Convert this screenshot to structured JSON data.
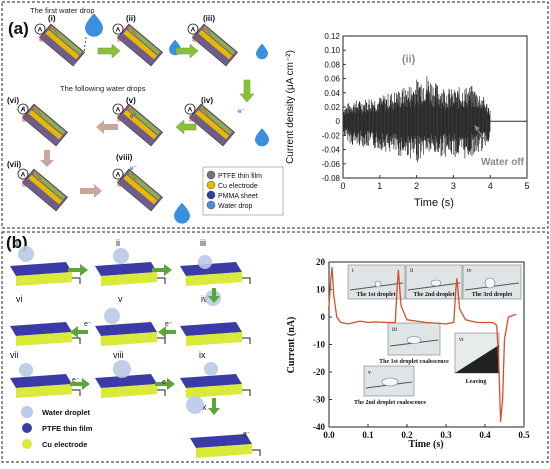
{
  "panels": {
    "a": {
      "label": "(a)",
      "top_caption": "The first water drop",
      "mid_caption": "The following water drops",
      "steps": [
        "(i)",
        "(ii)",
        "(iii)",
        "(iv)",
        "(v)",
        "(vi)",
        "(vii)",
        "(viii)"
      ],
      "ammeter": "A",
      "electron": "e⁻",
      "legend": [
        {
          "label": "PTFE thin film",
          "color": "#7a6e8a"
        },
        {
          "label": "Cu electrode",
          "color": "#e8b900"
        },
        {
          "label": "PMMA sheet",
          "color": "#2f3f9c"
        },
        {
          "label": "Water drop",
          "color": "#4a8fd6"
        }
      ]
    },
    "b": {
      "label": "(b)",
      "steps": [
        "i",
        "ii",
        "iii",
        "iv",
        "v",
        "vi",
        "vii",
        "viii",
        "ix",
        "x"
      ],
      "electron": "e⁻",
      "legend": [
        {
          "label": "Water droplet",
          "color": "#b9c9e6"
        },
        {
          "label": "PTFE thin film",
          "color": "#3b3ba8"
        },
        {
          "label": "Cu electrode",
          "color": "#d9ea3a"
        }
      ],
      "inset_labels": [
        {
          "roman": "i",
          "text": "The 1st droplet"
        },
        {
          "roman": "ii",
          "text": "The 2nd droplet"
        },
        {
          "roman": "iv",
          "text": "The 3rd droplet"
        },
        {
          "roman": "iii",
          "text": "The 1st droplet coalescence"
        },
        {
          "roman": "vi",
          "text": "Leaving"
        },
        {
          "roman": "v",
          "text": "The 2nd droplet coalescence"
        }
      ]
    }
  },
  "chart_data": [
    {
      "type": "line",
      "xlabel": "Time (s)",
      "ylabel": "Current density (μA cm⁻²)",
      "xlim": [
        0,
        5
      ],
      "ylim": [
        -0.08,
        0.12
      ],
      "xticks": [
        "0",
        "1",
        "2",
        "3",
        "4",
        "5"
      ],
      "yticks": [
        "-0.08",
        "-0.06",
        "-0.04",
        "-0.02",
        "0",
        "0.02",
        "0.04",
        "0.06",
        "0.08",
        "0.10",
        "0.12"
      ],
      "annotations": [
        "(ii)",
        "Water off"
      ],
      "series": [
        {
          "color": "#333333",
          "x": [
            0,
            0.25,
            0.5,
            0.75,
            1.0,
            1.25,
            1.5,
            1.75,
            2.0,
            2.25,
            2.5,
            2.75,
            3.0,
            3.25,
            3.5,
            3.75,
            4.0,
            4.05,
            4.5,
            5.0
          ],
          "envelope_max": [
            0.02,
            0.03,
            0.03,
            0.035,
            0.035,
            0.04,
            0.045,
            0.05,
            0.06,
            0.07,
            0.055,
            0.05,
            0.045,
            0.05,
            0.05,
            0.04,
            0.02,
            0,
            0,
            0
          ],
          "envelope_min": [
            -0.02,
            -0.035,
            -0.035,
            -0.04,
            -0.04,
            -0.045,
            -0.05,
            -0.05,
            -0.06,
            -0.045,
            -0.05,
            -0.05,
            -0.05,
            -0.055,
            -0.05,
            -0.045,
            -0.025,
            0,
            0,
            0
          ]
        }
      ]
    },
    {
      "type": "line",
      "xlabel": "Time (s)",
      "ylabel": "Current (nA)",
      "xlim": [
        0,
        0.5
      ],
      "ylim": [
        -40,
        20
      ],
      "xticks": [
        "0.0",
        "0.1",
        "0.2",
        "0.3",
        "0.4",
        "0.5"
      ],
      "yticks": [
        "-40",
        "-30",
        "-20",
        "-10",
        "0",
        "10",
        "20"
      ],
      "series": [
        {
          "color": "#d4502a",
          "x": [
            0.0,
            0.005,
            0.008,
            0.012,
            0.02,
            0.03,
            0.05,
            0.08,
            0.1,
            0.12,
            0.15,
            0.17,
            0.175,
            0.178,
            0.185,
            0.2,
            0.25,
            0.3,
            0.32,
            0.325,
            0.328,
            0.335,
            0.35,
            0.38,
            0.42,
            0.43,
            0.435,
            0.44,
            0.445,
            0.45,
            0.46,
            0.48
          ],
          "y": [
            4,
            14,
            18,
            8,
            0,
            -2,
            -2.5,
            -1.5,
            -2,
            -1.8,
            -2,
            -2,
            12,
            17,
            4,
            -1,
            -2,
            -2.5,
            -2,
            10,
            14,
            3,
            -1,
            -2,
            -2,
            -3,
            -15,
            -38,
            -30,
            -8,
            0,
            1
          ]
        }
      ]
    }
  ]
}
